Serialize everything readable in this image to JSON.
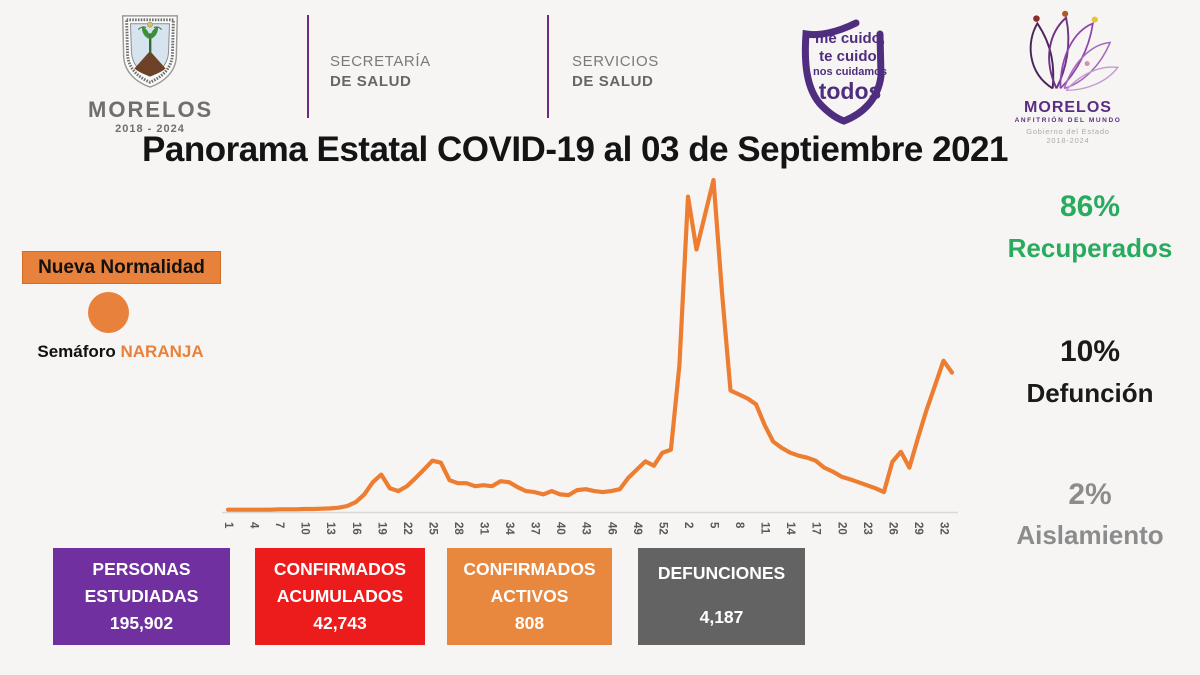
{
  "header": {
    "coat": {
      "title": "MORELOS",
      "subtitle": "2018 - 2024"
    },
    "secretaria": {
      "line1": "SECRETARÍA",
      "line2": "DE SALUD"
    },
    "servicios": {
      "line1": "SERVICIOS",
      "line2": "DE SALUD"
    },
    "shield": {
      "line1": "me cuido,",
      "line2": "te cuido,",
      "line3": "nos cuidamos",
      "line4": "todos"
    },
    "anfitrion": {
      "title": "MORELOS",
      "subtitle": "ANFITRIÓN DEL MUNDO",
      "gov": "Gobierno del Estado",
      "years": "2018-2024"
    }
  },
  "main_title": "Panorama Estatal COVID-19 al 03 de Septiembre 2021",
  "semaforo": {
    "badge": "Nueva Normalidad",
    "prefix": "Semáforo ",
    "value": "NARANJA",
    "color": "#E8813B"
  },
  "stats_right": [
    {
      "pct": "86%",
      "label": "Recuperados",
      "color": "#29AB5F"
    },
    {
      "pct": "10%",
      "label": "Defunción",
      "color": "#1A1A1A"
    },
    {
      "pct": "2%",
      "label": "Aislamiento",
      "color": "#8C8C8C"
    }
  ],
  "boxes": [
    {
      "line1": "PERSONAS",
      "line2": "ESTUDIADAS",
      "value": "195,902",
      "color": "#7030A0"
    },
    {
      "line1": "CONFIRMADOS",
      "line2": "ACUMULADOS",
      "value": "42,743",
      "color": "#ED1C1C"
    },
    {
      "line1": "CONFIRMADOS",
      "line2": "ACTIVOS",
      "value": "808",
      "color": "#E8883F"
    },
    {
      "line1": "DEFUNCIONES",
      "value": "4,187",
      "color": "#636363"
    }
  ],
  "chart_data": {
    "type": "line",
    "title": "",
    "xlabel": "",
    "ylabel": "",
    "x_tick_labels": [
      "1",
      "4",
      "7",
      "10",
      "13",
      "16",
      "19",
      "22",
      "25",
      "28",
      "31",
      "34",
      "37",
      "40",
      "43",
      "46",
      "49",
      "52",
      "2",
      "5",
      "8",
      "11",
      "14",
      "17",
      "20",
      "23",
      "26",
      "29",
      "32"
    ],
    "x_tick_step": 3,
    "x_note": "epidemiological weeks 2020 (1-53) followed by 2021 (1-33)",
    "values": [
      0.4,
      0.4,
      0.4,
      0.4,
      0.4,
      0.4,
      0.5,
      0.5,
      0.5,
      0.6,
      0.6,
      0.7,
      0.8,
      1.0,
      1.5,
      2.7,
      5.0,
      8.7,
      11.0,
      6.9,
      6.0,
      7.5,
      9.9,
      12.5,
      15.2,
      14.6,
      9.3,
      8.4,
      8.4,
      7.5,
      7.8,
      7.5,
      9.0,
      8.7,
      7.2,
      6.0,
      5.7,
      5.0,
      6.0,
      5.0,
      4.8,
      6.3,
      6.6,
      6.0,
      5.7,
      6.0,
      6.6,
      10.0,
      12.5,
      15.0,
      13.7,
      17.6,
      18.5,
      44.0,
      95.0,
      79.0,
      89.5,
      100.0,
      66.0,
      36.4,
      35.2,
      34.0,
      32.2,
      26.0,
      21.0,
      19.1,
      17.6,
      16.7,
      16.1,
      15.2,
      13.1,
      11.9,
      10.4,
      9.6,
      8.7,
      7.8,
      6.9,
      5.7,
      14.9,
      17.9,
      13.1,
      22.0,
      30.4,
      37.9,
      45.4,
      41.8
    ],
    "ylim": [
      0,
      100
    ],
    "grid": false,
    "legend": "none",
    "line_color": "#ED7D31",
    "axis_color": "#DAD8D4",
    "tick_text_color": "#595959"
  }
}
